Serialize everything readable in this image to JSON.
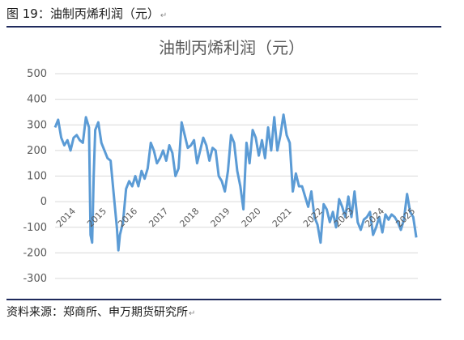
{
  "caption": "图 19：油制丙烯利润（元）",
  "source": "资料来源：郑商所、申万期货研究所",
  "chart_data": {
    "type": "line",
    "title": "油制丙烯利润（元）",
    "xlabel": "",
    "ylabel": "",
    "ylim": [
      -300,
      500
    ],
    "yticks": [
      500,
      400,
      300,
      200,
      100,
      0,
      -100,
      -200,
      -300
    ],
    "xticks": [
      "2014",
      "2015",
      "2016",
      "2017",
      "2018",
      "2019",
      "2020",
      "2021",
      "2022",
      "2023",
      "2024",
      "2025"
    ],
    "grid": "horizontal",
    "legend": "none",
    "color": "#5b9bd5",
    "x": [
      2014.0,
      2014.1,
      2014.2,
      2014.3,
      2014.4,
      2014.5,
      2014.6,
      2014.7,
      2014.8,
      2014.9,
      2015.0,
      2015.1,
      2015.15,
      2015.2,
      2015.25,
      2015.3,
      2015.4,
      2015.5,
      2015.6,
      2015.7,
      2015.8,
      2015.9,
      2016.0,
      2016.05,
      2016.1,
      2016.2,
      2016.3,
      2016.4,
      2016.5,
      2016.6,
      2016.7,
      2016.8,
      2016.9,
      2017.0,
      2017.1,
      2017.2,
      2017.3,
      2017.4,
      2017.5,
      2017.6,
      2017.7,
      2017.8,
      2017.9,
      2018.0,
      2018.1,
      2018.2,
      2018.3,
      2018.4,
      2018.5,
      2018.6,
      2018.7,
      2018.8,
      2018.9,
      2019.0,
      2019.1,
      2019.2,
      2019.3,
      2019.4,
      2019.5,
      2019.6,
      2019.7,
      2019.8,
      2019.9,
      2020.0,
      2020.1,
      2020.2,
      2020.3,
      2020.4,
      2020.5,
      2020.6,
      2020.7,
      2020.8,
      2020.9,
      2021.0,
      2021.1,
      2021.2,
      2021.3,
      2021.4,
      2021.5,
      2021.6,
      2021.7,
      2021.8,
      2021.9,
      2022.0,
      2022.1,
      2022.2,
      2022.3,
      2022.4,
      2022.5,
      2022.6,
      2022.7,
      2022.8,
      2022.9,
      2023.0,
      2023.1,
      2023.2,
      2023.3,
      2023.4,
      2023.5,
      2023.6,
      2023.7,
      2023.8,
      2023.9,
      2024.0,
      2024.1,
      2024.2,
      2024.3,
      2024.4,
      2024.5,
      2024.6,
      2024.7,
      2024.8,
      2024.9,
      2025.0,
      2025.1,
      2025.2,
      2025.3,
      2025.4,
      2025.5,
      2025.6,
      2025.7
    ],
    "values": [
      290,
      320,
      250,
      220,
      240,
      200,
      250,
      260,
      240,
      230,
      330,
      290,
      -130,
      -160,
      100,
      280,
      310,
      230,
      200,
      170,
      160,
      30,
      -100,
      -190,
      -130,
      -80,
      50,
      80,
      60,
      100,
      60,
      120,
      90,
      130,
      230,
      200,
      150,
      170,
      200,
      160,
      220,
      190,
      100,
      130,
      310,
      260,
      210,
      220,
      240,
      150,
      200,
      250,
      220,
      160,
      210,
      200,
      100,
      80,
      40,
      120,
      260,
      230,
      120,
      60,
      -30,
      230,
      150,
      280,
      250,
      180,
      240,
      170,
      290,
      200,
      330,
      200,
      260,
      340,
      260,
      230,
      40,
      110,
      60,
      60,
      20,
      -20,
      40,
      -60,
      -90,
      -160,
      -10,
      -30,
      -80,
      -40,
      -100,
      10,
      -20,
      -60,
      20,
      -60,
      40,
      -80,
      -110,
      -70,
      -60,
      -40,
      -130,
      -100,
      -60,
      -120,
      -50,
      -70,
      -50,
      -60,
      -80,
      -110,
      -70,
      30,
      -40,
      -60,
      -140
    ]
  }
}
